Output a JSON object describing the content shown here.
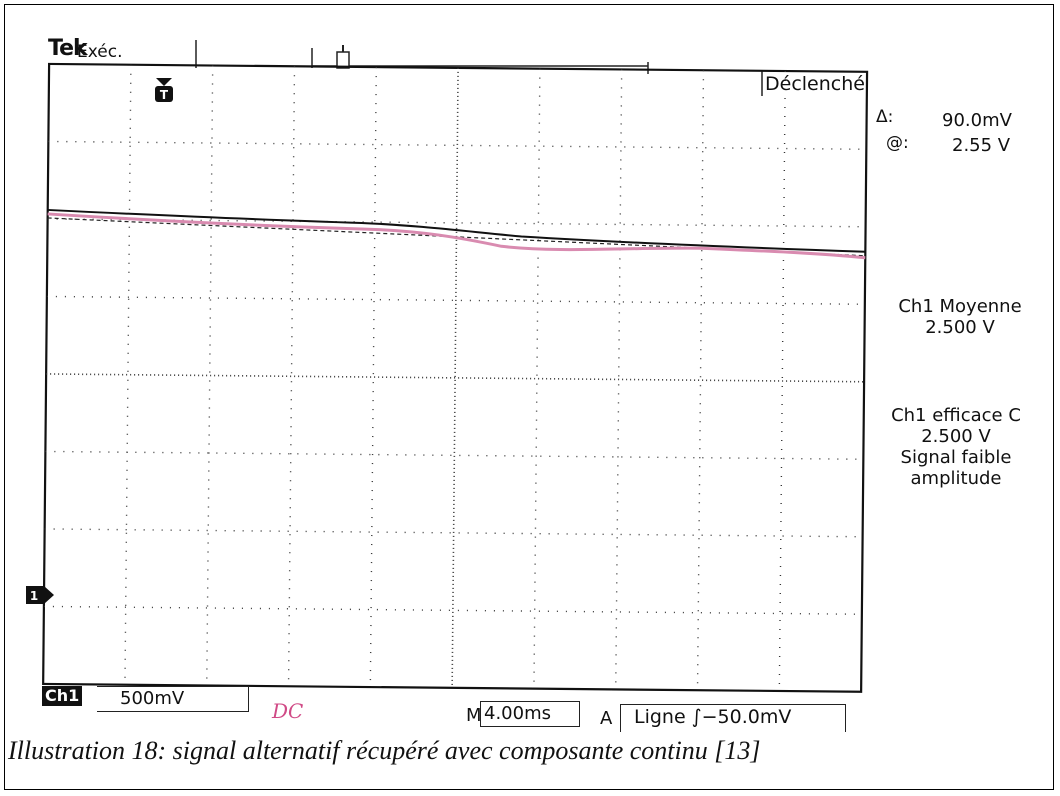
{
  "screen": {
    "brand": "Tek",
    "run_status": "Exéc.",
    "trigger_status": "Déclenché",
    "trigger_marker": "T",
    "channel_marker": "1"
  },
  "measurements": {
    "delta_label": "Δ:",
    "delta_value": "90.0mV",
    "at_label": "@:",
    "at_value": "2.55 V",
    "mean_title": "Ch1 Moyenne",
    "mean_value": "2.500 V",
    "rms_title": "Ch1 efficace C",
    "rms_value": "2.500 V",
    "rms_note_line1": "Signal faible",
    "rms_note_line2": "amplitude"
  },
  "status_bar": {
    "channel_badge": "Ch1",
    "channel_scale": "500mV",
    "handwritten_note": "DC",
    "time_prefix": "M",
    "time_scale": "4.00ms",
    "trigger_prefix": "A",
    "trigger_readout": "Ligne ∫−50.0mV"
  },
  "caption": "Illustration 18: signal alternatif récupéré avec composante continu [13]",
  "colors": {
    "trace": "#111111",
    "pink_trace": "#d98bb0",
    "ink": "#111111"
  }
}
